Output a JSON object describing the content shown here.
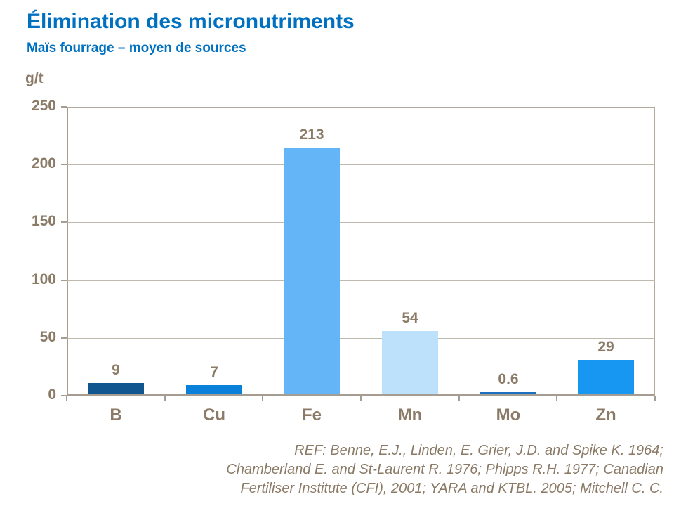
{
  "slide": {
    "title": "Élimination des micronutriments",
    "subtitle": "Maïs fourrage – moyen de sources",
    "unit_label": "g/t"
  },
  "chart_data": {
    "type": "bar",
    "title": "Élimination des micronutriments",
    "subtitle": "Maïs fourrage – moyen de sources",
    "ylabel": "g/t",
    "xlabel": "",
    "categories": [
      "B",
      "Cu",
      "Fe",
      "Mn",
      "Mo",
      "Zn"
    ],
    "values": [
      9,
      7,
      213,
      54,
      0.6,
      29
    ],
    "value_labels": [
      "9",
      "7",
      "213",
      "54",
      "0.6",
      "29"
    ],
    "bar_colors": [
      "#11568F",
      "#0981DB",
      "#63B5F7",
      "#BEE1FB",
      "#1A6FBF",
      "#1897F2"
    ],
    "ylim": [
      0,
      250
    ],
    "yticks": [
      0,
      50,
      100,
      150,
      200,
      250
    ],
    "grid": true,
    "legend": "none"
  },
  "footer": {
    "reference_lines": [
      "REF: Benne, E.J., Linden, E. Grier, J.D. and Spike K. 1964;",
      "Chamberland  E. and St-Laurent R. 1976; Phipps R.H. 1977; Canadian",
      "Fertiliser Institute (CFI), 2001; YARA and KTBL. 2005; Mitchell C. C."
    ]
  },
  "colors": {
    "title_blue": "#0070C0",
    "axis_text": "#8A7A66",
    "axis_line": "#A69D92",
    "border_line": "#B2A99D",
    "gridline": "#BFB8AD",
    "background": "#FFFFFF"
  }
}
